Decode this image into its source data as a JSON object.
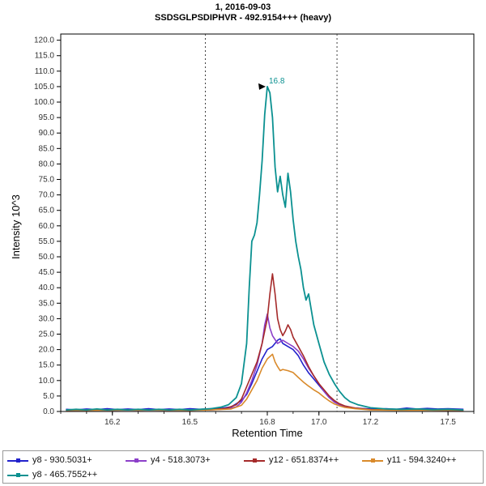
{
  "chart_data": {
    "type": "line",
    "title": "1, 2016-09-03",
    "subtitle": "SSDSGLPSDIPHVR - 492.9154+++ (heavy)",
    "xlabel": "Retention Time",
    "ylabel": "Intensity 10^3",
    "xlim": [
      16.0,
      17.6
    ],
    "ylim": [
      0,
      122
    ],
    "x_ticks": [
      16.2,
      16.5,
      16.8,
      17.0,
      17.2,
      17.5
    ],
    "x_tick_labels": [
      "16.2",
      "16.5",
      "16.8",
      "17.0",
      "17.2",
      "17.5"
    ],
    "y_tick_step": 5,
    "y_tick_max": 120,
    "grid": false,
    "legend_position": "bottom",
    "integration_boundaries": [
      16.56,
      17.07
    ],
    "annotation": {
      "text": "16.8",
      "x": 16.8,
      "y": 105,
      "color": "#0b9191"
    },
    "axis_colors": {
      "frame": "#000000",
      "tick_label": "#333333",
      "boundary_line": "#404040"
    },
    "series": [
      {
        "name": "y8 - 930.5031+",
        "color": "#2222cc",
        "points": [
          [
            16.02,
            0.7
          ],
          [
            16.06,
            0.5
          ],
          [
            16.1,
            0.8
          ],
          [
            16.14,
            0.6
          ],
          [
            16.18,
            0.9
          ],
          [
            16.22,
            0.6
          ],
          [
            16.26,
            0.8
          ],
          [
            16.3,
            0.6
          ],
          [
            16.34,
            0.9
          ],
          [
            16.38,
            0.6
          ],
          [
            16.42,
            0.8
          ],
          [
            16.46,
            0.6
          ],
          [
            16.5,
            0.9
          ],
          [
            16.54,
            0.7
          ],
          [
            16.58,
            0.9
          ],
          [
            16.62,
            1.0
          ],
          [
            16.66,
            1.5
          ],
          [
            16.7,
            3.5
          ],
          [
            16.72,
            5.5
          ],
          [
            16.74,
            9
          ],
          [
            16.76,
            13
          ],
          [
            16.78,
            17
          ],
          [
            16.8,
            20
          ],
          [
            16.82,
            21
          ],
          [
            16.84,
            23
          ],
          [
            16.85,
            23.5
          ],
          [
            16.86,
            22
          ],
          [
            16.88,
            21
          ],
          [
            16.9,
            20
          ],
          [
            16.92,
            18
          ],
          [
            16.94,
            15
          ],
          [
            16.96,
            12.5
          ],
          [
            16.98,
            10.5
          ],
          [
            17.0,
            8.5
          ],
          [
            17.02,
            6.5
          ],
          [
            17.04,
            4.5
          ],
          [
            17.06,
            3.2
          ],
          [
            17.08,
            2.2
          ],
          [
            17.1,
            1.6
          ],
          [
            17.14,
            1.1
          ],
          [
            17.18,
            0.9
          ],
          [
            17.22,
            0.7
          ],
          [
            17.26,
            0.9
          ],
          [
            17.3,
            0.7
          ],
          [
            17.34,
            1.1
          ],
          [
            17.38,
            0.8
          ],
          [
            17.42,
            1.0
          ],
          [
            17.46,
            0.8
          ],
          [
            17.5,
            0.9
          ],
          [
            17.56,
            0.7
          ]
        ]
      },
      {
        "name": "y4 - 518.3073+",
        "color": "#8c3fc9",
        "points": [
          [
            16.02,
            0.4
          ],
          [
            16.1,
            0.5
          ],
          [
            16.2,
            0.4
          ],
          [
            16.3,
            0.5
          ],
          [
            16.4,
            0.4
          ],
          [
            16.5,
            0.5
          ],
          [
            16.58,
            0.5
          ],
          [
            16.64,
            0.8
          ],
          [
            16.68,
            1.5
          ],
          [
            16.7,
            3
          ],
          [
            16.72,
            6
          ],
          [
            16.74,
            10
          ],
          [
            16.76,
            15
          ],
          [
            16.78,
            22
          ],
          [
            16.79,
            28
          ],
          [
            16.8,
            31.5
          ],
          [
            16.81,
            27
          ],
          [
            16.82,
            24.5
          ],
          [
            16.84,
            22
          ],
          [
            16.86,
            23
          ],
          [
            16.88,
            22
          ],
          [
            16.9,
            21
          ],
          [
            16.92,
            19.5
          ],
          [
            16.94,
            17
          ],
          [
            16.96,
            14
          ],
          [
            16.98,
            11.5
          ],
          [
            17.0,
            9
          ],
          [
            17.02,
            6.5
          ],
          [
            17.04,
            4.5
          ],
          [
            17.06,
            3
          ],
          [
            17.08,
            2.2
          ],
          [
            17.1,
            1.6
          ],
          [
            17.14,
            1.0
          ],
          [
            17.2,
            0.6
          ],
          [
            17.3,
            0.5
          ],
          [
            17.4,
            0.5
          ],
          [
            17.5,
            0.4
          ],
          [
            17.56,
            0.4
          ]
        ]
      },
      {
        "name": "y12 - 651.8374++",
        "color": "#a52a2a",
        "points": [
          [
            16.02,
            0.4
          ],
          [
            16.1,
            0.4
          ],
          [
            16.2,
            0.5
          ],
          [
            16.3,
            0.4
          ],
          [
            16.4,
            0.5
          ],
          [
            16.5,
            0.4
          ],
          [
            16.58,
            0.6
          ],
          [
            16.64,
            1.0
          ],
          [
            16.68,
            2.2
          ],
          [
            16.7,
            4
          ],
          [
            16.72,
            8
          ],
          [
            16.74,
            12
          ],
          [
            16.76,
            16
          ],
          [
            16.78,
            22
          ],
          [
            16.8,
            30
          ],
          [
            16.81,
            38
          ],
          [
            16.82,
            44.5
          ],
          [
            16.83,
            38
          ],
          [
            16.84,
            30
          ],
          [
            16.85,
            26.5
          ],
          [
            16.86,
            24.5
          ],
          [
            16.87,
            26
          ],
          [
            16.88,
            28
          ],
          [
            16.89,
            26.5
          ],
          [
            16.9,
            24
          ],
          [
            16.92,
            21
          ],
          [
            16.94,
            18
          ],
          [
            16.96,
            14.5
          ],
          [
            16.98,
            11.5
          ],
          [
            17.0,
            9
          ],
          [
            17.02,
            7
          ],
          [
            17.04,
            5
          ],
          [
            17.06,
            3.5
          ],
          [
            17.08,
            2.5
          ],
          [
            17.1,
            1.8
          ],
          [
            17.14,
            1.1
          ],
          [
            17.2,
            0.6
          ],
          [
            17.3,
            0.5
          ],
          [
            17.4,
            0.5
          ],
          [
            17.5,
            0.4
          ],
          [
            17.56,
            0.4
          ]
        ]
      },
      {
        "name": "y11 - 594.3240++",
        "color": "#d98a2b",
        "points": [
          [
            16.02,
            0.4
          ],
          [
            16.1,
            0.4
          ],
          [
            16.2,
            0.4
          ],
          [
            16.3,
            0.5
          ],
          [
            16.4,
            0.4
          ],
          [
            16.5,
            0.4
          ],
          [
            16.58,
            0.5
          ],
          [
            16.66,
            0.8
          ],
          [
            16.7,
            2
          ],
          [
            16.72,
            4
          ],
          [
            16.74,
            7
          ],
          [
            16.76,
            10
          ],
          [
            16.78,
            14
          ],
          [
            16.8,
            17
          ],
          [
            16.82,
            18.5
          ],
          [
            16.83,
            16
          ],
          [
            16.84,
            14.5
          ],
          [
            16.85,
            13.2
          ],
          [
            16.86,
            13.6
          ],
          [
            16.88,
            13.2
          ],
          [
            16.9,
            12.6
          ],
          [
            16.92,
            11
          ],
          [
            16.94,
            9.5
          ],
          [
            16.96,
            8.2
          ],
          [
            16.98,
            7
          ],
          [
            17.0,
            6
          ],
          [
            17.02,
            4.6
          ],
          [
            17.04,
            3.4
          ],
          [
            17.06,
            2.4
          ],
          [
            17.08,
            1.8
          ],
          [
            17.1,
            1.3
          ],
          [
            17.14,
            0.9
          ],
          [
            17.2,
            0.5
          ],
          [
            17.3,
            0.4
          ],
          [
            17.4,
            0.4
          ],
          [
            17.5,
            0.4
          ],
          [
            17.56,
            0.4
          ]
        ]
      },
      {
        "name": "y8 - 465.7552++",
        "color": "#0b9191",
        "points": [
          [
            16.02,
            0.5
          ],
          [
            16.06,
            0.7
          ],
          [
            16.1,
            0.5
          ],
          [
            16.14,
            0.8
          ],
          [
            16.18,
            0.5
          ],
          [
            16.22,
            0.7
          ],
          [
            16.26,
            0.5
          ],
          [
            16.3,
            0.7
          ],
          [
            16.34,
            0.5
          ],
          [
            16.38,
            0.7
          ],
          [
            16.42,
            0.5
          ],
          [
            16.46,
            0.7
          ],
          [
            16.5,
            0.5
          ],
          [
            16.54,
            0.7
          ],
          [
            16.58,
            0.9
          ],
          [
            16.62,
            1.4
          ],
          [
            16.65,
            2.2
          ],
          [
            16.68,
            4.5
          ],
          [
            16.7,
            9
          ],
          [
            16.72,
            22
          ],
          [
            16.73,
            40
          ],
          [
            16.74,
            55
          ],
          [
            16.75,
            57
          ],
          [
            16.76,
            61
          ],
          [
            16.77,
            70
          ],
          [
            16.78,
            81
          ],
          [
            16.79,
            96
          ],
          [
            16.8,
            105
          ],
          [
            16.81,
            103
          ],
          [
            16.82,
            95
          ],
          [
            16.83,
            79
          ],
          [
            16.84,
            71
          ],
          [
            16.85,
            76
          ],
          [
            16.86,
            70
          ],
          [
            16.87,
            66
          ],
          [
            16.88,
            77
          ],
          [
            16.89,
            71
          ],
          [
            16.9,
            62
          ],
          [
            16.91,
            55
          ],
          [
            16.92,
            50
          ],
          [
            16.93,
            46
          ],
          [
            16.94,
            40
          ],
          [
            16.95,
            36
          ],
          [
            16.96,
            38
          ],
          [
            16.97,
            33
          ],
          [
            16.98,
            28
          ],
          [
            17.0,
            22
          ],
          [
            17.02,
            16
          ],
          [
            17.04,
            12
          ],
          [
            17.06,
            9
          ],
          [
            17.08,
            6.5
          ],
          [
            17.1,
            4.5
          ],
          [
            17.12,
            3.2
          ],
          [
            17.15,
            2.2
          ],
          [
            17.2,
            1.2
          ],
          [
            17.26,
            0.8
          ],
          [
            17.32,
            0.7
          ],
          [
            17.38,
            0.8
          ],
          [
            17.44,
            0.6
          ],
          [
            17.5,
            0.7
          ],
          [
            17.56,
            0.5
          ]
        ]
      }
    ]
  }
}
